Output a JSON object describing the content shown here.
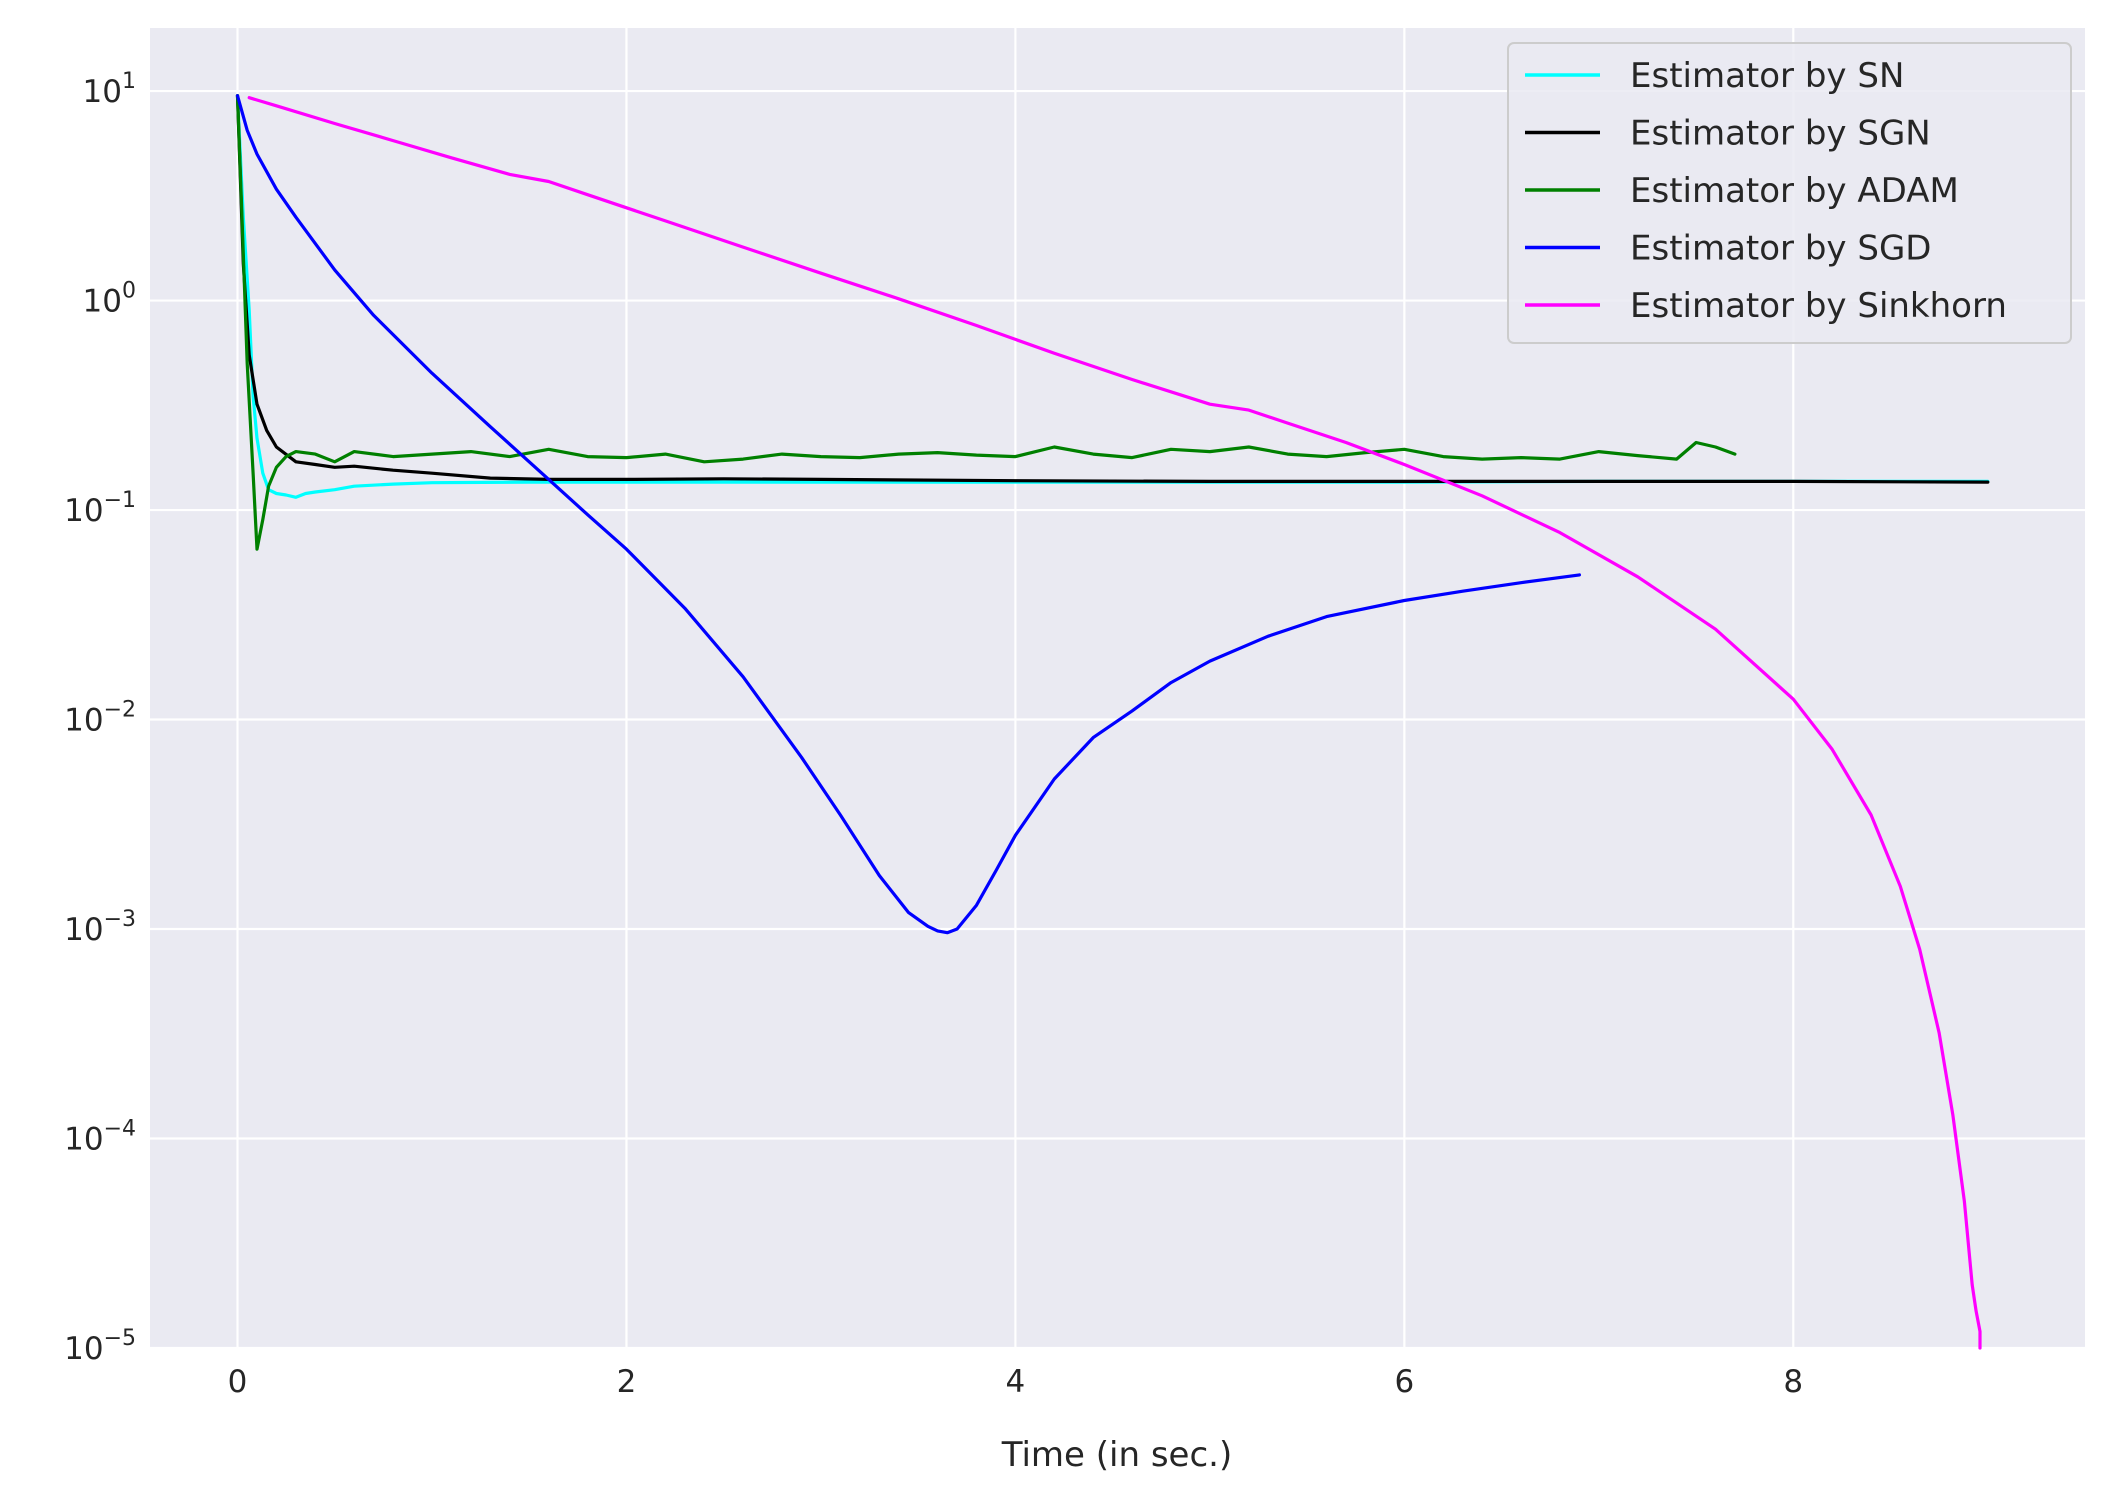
{
  "chart_data": {
    "type": "line",
    "title": "",
    "xlabel": "Time (in sec.)",
    "ylabel": "",
    "xlim": [
      -0.45,
      9.5
    ],
    "ylim": [
      1e-05,
      20
    ],
    "yscale": "log",
    "grid": true,
    "legend_position": "top-right",
    "background": "#eaeaf2",
    "grid_color": "#ffffff",
    "x_ticks": [
      0,
      2,
      4,
      6,
      8
    ],
    "x_tick_labels": [
      "0",
      "2",
      "4",
      "6",
      "8"
    ],
    "y_ticks": [
      10,
      1,
      0.1,
      0.01,
      0.001,
      0.0001,
      1e-05
    ],
    "y_tick_labels": [
      {
        "base": "10",
        "exp": "1"
      },
      {
        "base": "10",
        "exp": "0"
      },
      {
        "base": "10",
        "exp": "−1"
      },
      {
        "base": "10",
        "exp": "−2"
      },
      {
        "base": "10",
        "exp": "−3"
      },
      {
        "base": "10",
        "exp": "−4"
      },
      {
        "base": "10",
        "exp": "−5"
      }
    ],
    "series": [
      {
        "name": "Estimator by SN",
        "color": "#00ffff",
        "x": [
          0.0,
          0.03,
          0.06,
          0.08,
          0.1,
          0.13,
          0.16,
          0.2,
          0.25,
          0.3,
          0.35,
          0.4,
          0.5,
          0.6,
          0.8,
          1.0,
          1.5,
          2.0,
          3.0,
          4.0,
          5.0,
          6.0,
          7.0,
          8.0,
          9.0
        ],
        "y": [
          9.5,
          2.5,
          0.9,
          0.35,
          0.22,
          0.15,
          0.125,
          0.12,
          0.118,
          0.115,
          0.12,
          0.122,
          0.125,
          0.13,
          0.133,
          0.135,
          0.136,
          0.136,
          0.136,
          0.136,
          0.136,
          0.136,
          0.137,
          0.137,
          0.137
        ]
      },
      {
        "name": "Estimator by SGN",
        "color": "#000000",
        "x": [
          0.0,
          0.03,
          0.06,
          0.1,
          0.15,
          0.2,
          0.3,
          0.4,
          0.5,
          0.6,
          0.8,
          1.0,
          1.3,
          1.6,
          2.0,
          2.5,
          3.0,
          4.0,
          5.0,
          6.0,
          7.0,
          8.0,
          9.0
        ],
        "y": [
          9.5,
          1.5,
          0.55,
          0.32,
          0.24,
          0.2,
          0.17,
          0.165,
          0.16,
          0.162,
          0.155,
          0.15,
          0.142,
          0.14,
          0.14,
          0.141,
          0.14,
          0.138,
          0.137,
          0.137,
          0.137,
          0.137,
          0.136
        ]
      },
      {
        "name": "Estimator by ADAM",
        "color": "#008000",
        "x": [
          0.0,
          0.02,
          0.05,
          0.08,
          0.1,
          0.13,
          0.16,
          0.2,
          0.25,
          0.3,
          0.4,
          0.5,
          0.6,
          0.8,
          1.0,
          1.2,
          1.4,
          1.6,
          1.8,
          2.0,
          2.2,
          2.4,
          2.6,
          2.8,
          3.0,
          3.2,
          3.4,
          3.6,
          3.8,
          4.0,
          4.2,
          4.4,
          4.6,
          4.8,
          5.0,
          5.2,
          5.4,
          5.6,
          5.8,
          6.0,
          6.2,
          6.4,
          6.6,
          6.8,
          7.0,
          7.2,
          7.4,
          7.5,
          7.6,
          7.7
        ],
        "y": [
          9.5,
          3.0,
          0.5,
          0.15,
          0.065,
          0.09,
          0.13,
          0.16,
          0.18,
          0.19,
          0.185,
          0.17,
          0.19,
          0.18,
          0.185,
          0.19,
          0.18,
          0.195,
          0.18,
          0.178,
          0.185,
          0.17,
          0.175,
          0.185,
          0.18,
          0.178,
          0.185,
          0.188,
          0.183,
          0.18,
          0.2,
          0.185,
          0.178,
          0.195,
          0.19,
          0.2,
          0.185,
          0.18,
          0.188,
          0.195,
          0.18,
          0.175,
          0.178,
          0.175,
          0.19,
          0.182,
          0.175,
          0.21,
          0.2,
          0.185
        ]
      },
      {
        "name": "Estimator by SGD",
        "color": "#0000ff",
        "x": [
          0.0,
          0.05,
          0.1,
          0.2,
          0.3,
          0.5,
          0.7,
          1.0,
          1.3,
          1.6,
          1.8,
          2.0,
          2.3,
          2.6,
          2.9,
          3.1,
          3.3,
          3.45,
          3.55,
          3.6,
          3.65,
          3.7,
          3.8,
          3.9,
          4.0,
          4.2,
          4.4,
          4.6,
          4.8,
          5.0,
          5.3,
          5.6,
          6.0,
          6.3,
          6.6,
          6.9
        ],
        "y": [
          9.5,
          6.5,
          5.0,
          3.4,
          2.5,
          1.4,
          0.85,
          0.45,
          0.25,
          0.14,
          0.095,
          0.065,
          0.034,
          0.016,
          0.0066,
          0.0035,
          0.0018,
          0.0012,
          0.00103,
          0.00098,
          0.00096,
          0.001,
          0.0013,
          0.0019,
          0.0028,
          0.0052,
          0.0082,
          0.011,
          0.015,
          0.019,
          0.025,
          0.031,
          0.037,
          0.041,
          0.045,
          0.049
        ]
      },
      {
        "name": "Estimator by Sinkhorn",
        "color": "#ff00ff",
        "x": [
          0.06,
          0.2,
          0.5,
          0.8,
          1.1,
          1.4,
          1.6,
          1.8,
          2.2,
          2.6,
          3.0,
          3.4,
          3.8,
          4.2,
          4.6,
          5.0,
          5.2,
          5.4,
          5.7,
          6.0,
          6.4,
          6.8,
          7.2,
          7.6,
          8.0,
          8.2,
          8.4,
          8.55,
          8.65,
          8.75,
          8.82,
          8.88,
          8.92,
          8.94,
          8.96,
          8.96
        ],
        "y": [
          9.3,
          8.5,
          7.0,
          5.8,
          4.8,
          4.0,
          3.7,
          3.2,
          2.4,
          1.8,
          1.35,
          1.02,
          0.76,
          0.56,
          0.42,
          0.32,
          0.3,
          0.26,
          0.21,
          0.165,
          0.117,
          0.078,
          0.048,
          0.027,
          0.0125,
          0.0072,
          0.0035,
          0.0016,
          0.0008,
          0.00032,
          0.00013,
          5e-05,
          2e-05,
          1.5e-05,
          1.2e-05,
          1e-05
        ]
      }
    ]
  }
}
